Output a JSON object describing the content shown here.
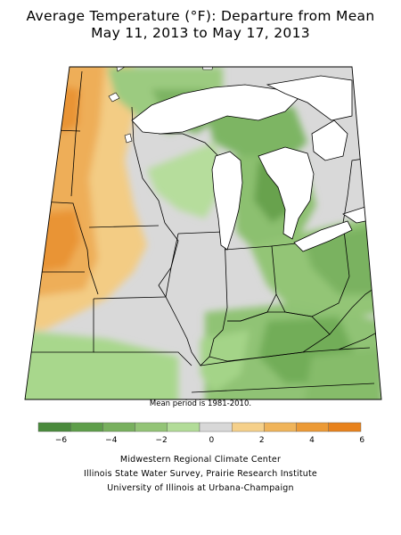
{
  "title_line1": "Average Temperature (°F): Departure from Mean",
  "title_line2": "May 11, 2013 to May 17, 2013",
  "mean_period_note": "Mean period is 1981-2010.",
  "legend": {
    "colors": [
      "#4a8a3c",
      "#5e9e4a",
      "#78b05e",
      "#93c476",
      "#b2dc98",
      "#d8d8d8",
      "#f5d08a",
      "#f0b45a",
      "#ec9a36",
      "#e8821c"
    ],
    "tick_labels": [
      "−6",
      "−4",
      "−2",
      "0",
      "2",
      "4",
      "6"
    ]
  },
  "credits": [
    "Midwestern Regional Climate Center",
    "Illinois State Water Survey, Prairie Research Institute",
    "University of Illinois at Urbana-Champaign"
  ]
}
